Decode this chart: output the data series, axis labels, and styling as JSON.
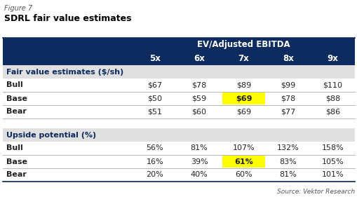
{
  "figure_label": "Figure 7",
  "title": "SDRL fair value estimates",
  "header_label": "EV/Adjusted EBITDA",
  "col_headers": [
    "5x",
    "6x",
    "7x",
    "8x",
    "9x"
  ],
  "section1_label": "Fair value estimates ($/sh)",
  "section1_rows": [
    {
      "name": "Bull",
      "values": [
        "$67",
        "$78",
        "$89",
        "$99",
        "$110"
      ]
    },
    {
      "name": "Base",
      "values": [
        "$50",
        "$59",
        "$69",
        "$78",
        "$88"
      ]
    },
    {
      "name": "Bear",
      "values": [
        "$51",
        "$60",
        "$69",
        "$77",
        "$86"
      ]
    }
  ],
  "section2_label": "Upside potential (%)",
  "section2_rows": [
    {
      "name": "Bull",
      "values": [
        "56%",
        "81%",
        "107%",
        "132%",
        "158%"
      ]
    },
    {
      "name": "Base",
      "values": [
        "16%",
        "39%",
        "61%",
        "83%",
        "105%"
      ]
    },
    {
      "name": "Bear",
      "values": [
        "20%",
        "40%",
        "60%",
        "81%",
        "101%"
      ]
    }
  ],
  "highlight_col": 2,
  "highlight_color": "#FFFF00",
  "header_bg": "#0D2B5E",
  "header_fg": "#FFFFFF",
  "subheader_bg": "#E0E0E0",
  "subheader_fg": "#0D2B5E",
  "text_color": "#222222",
  "border_color": "#0D2B5E",
  "divider_color": "#AAAAAA",
  "source_text": "Source: Vektor Research",
  "figure_label_color": "#555555",
  "title_color": "#000000",
  "bg_color": "#FFFFFF"
}
